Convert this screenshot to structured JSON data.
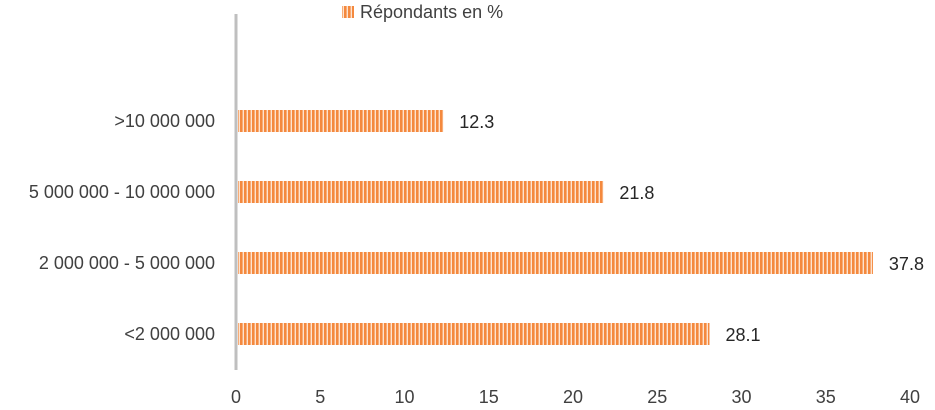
{
  "chart_data": {
    "type": "bar",
    "orientation": "horizontal",
    "categories": [
      ">10 000 000",
      "5 000 000 - 10 000 000",
      "2 000 000 - 5 000 000",
      "<2 000 000"
    ],
    "series": [
      {
        "name": "Répondants en %",
        "values": [
          12.3,
          21.8,
          37.8,
          28.1
        ]
      }
    ],
    "data_labels": [
      "12.3",
      "21.8",
      "37.8",
      "28.1"
    ],
    "x_ticks": [
      "0",
      "5",
      "10",
      "15",
      "20",
      "25",
      "30",
      "35",
      "40"
    ],
    "xlim": [
      0,
      40
    ],
    "grid": false,
    "legend_position": "top",
    "colors": {
      "bar_fill": "#f4893e",
      "bar_stripe": "#ffffff",
      "axis": "#bfbfbf"
    }
  }
}
